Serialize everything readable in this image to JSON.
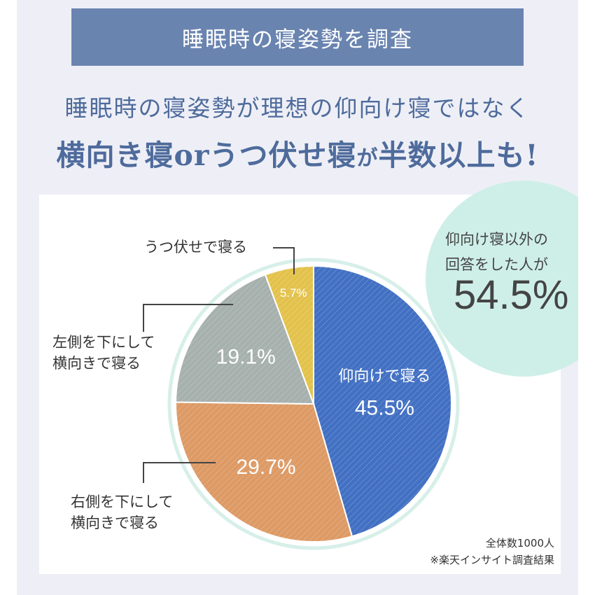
{
  "banner": {
    "title": "睡眠時の寝姿勢を調査"
  },
  "headline": {
    "line1": "睡眠時の寝姿勢が理想の仰向け寝ではなく",
    "line2_a": "横向き寝orうつ伏せ寝",
    "line2_b": "が",
    "line2_c": "半数以上も!"
  },
  "highlight": {
    "line1": "仰向け寝以外の",
    "line2": "回答をした人が",
    "value": "54.5%"
  },
  "callouts": {
    "prone": "うつ伏せで寝る",
    "left_1": "左側を下にして",
    "left_2": "横向きで寝る",
    "right_1": "右側を下にして",
    "right_2": "横向きで寝る"
  },
  "footnote": {
    "total": "全体数1000人",
    "source": "※楽天インサイト調査結果"
  },
  "chart_data": {
    "type": "pie",
    "title": "",
    "slices": [
      {
        "key": "supine",
        "label": "仰向けで寝る",
        "value": 45.5,
        "value_label": "45.5%",
        "color": "#4270c3"
      },
      {
        "key": "right",
        "label": "右側を下にして横向きで寝る",
        "value": 29.7,
        "value_label": "29.7%",
        "color": "#dd9a65"
      },
      {
        "key": "left",
        "label": "左側を下にして横向きで寝る",
        "value": 19.1,
        "value_label": "19.1%",
        "color": "#a6b0ad"
      },
      {
        "key": "prone",
        "label": "うつ伏せで寝る",
        "value": 5.7,
        "value_label": "5.7%",
        "color": "#e3c24c"
      }
    ]
  }
}
